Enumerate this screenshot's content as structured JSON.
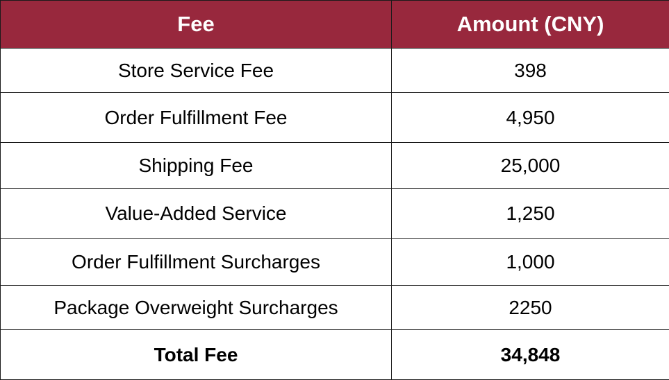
{
  "table": {
    "headers": {
      "fee": "Fee",
      "amount": "Amount (CNY)"
    },
    "rows": [
      {
        "fee": "Store Service Fee",
        "amount": "398"
      },
      {
        "fee": "Order Fulfillment Fee",
        "amount": "4,950"
      },
      {
        "fee": "Shipping Fee",
        "amount": "25,000"
      },
      {
        "fee": "Value-Added Service",
        "amount": "1,250"
      },
      {
        "fee": "Order Fulfillment Surcharges",
        "amount": "1,000"
      },
      {
        "fee": "Package Overweight Surcharges",
        "amount": "2250"
      }
    ],
    "total": {
      "fee": "Total Fee",
      "amount": "34,848"
    }
  },
  "colors": {
    "header_background": "#98283d",
    "header_text": "#ffffff",
    "border": "#1a1a1a"
  }
}
